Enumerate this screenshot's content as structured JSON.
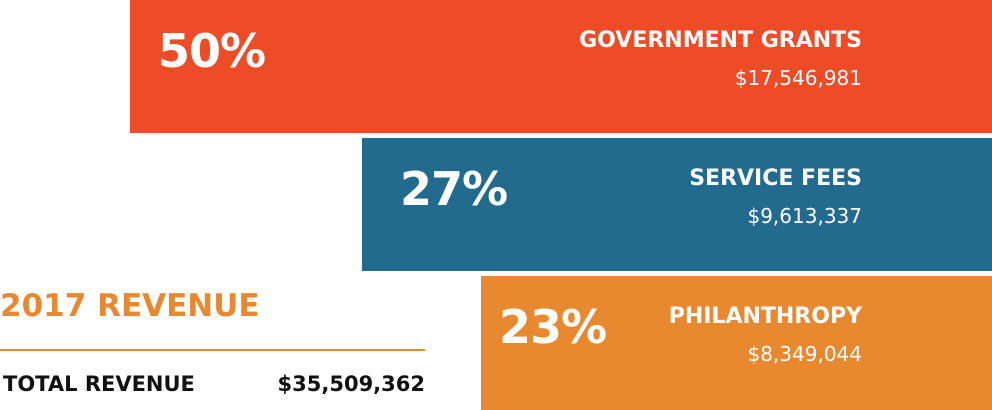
{
  "header": {
    "title": "2017 REVENUE"
  },
  "total": {
    "label": "TOTAL REVENUE",
    "value": "$35,509,362"
  },
  "segments": [
    {
      "percent": "50%",
      "label": "GOVERNMENT GRANTS",
      "amount": "$17,546,981"
    },
    {
      "percent": "27%",
      "label": "SERVICE FEES",
      "amount": "$9,613,337"
    },
    {
      "percent": "23%",
      "label": "PHILANTHROPY",
      "amount": "$8,349,044"
    }
  ]
}
